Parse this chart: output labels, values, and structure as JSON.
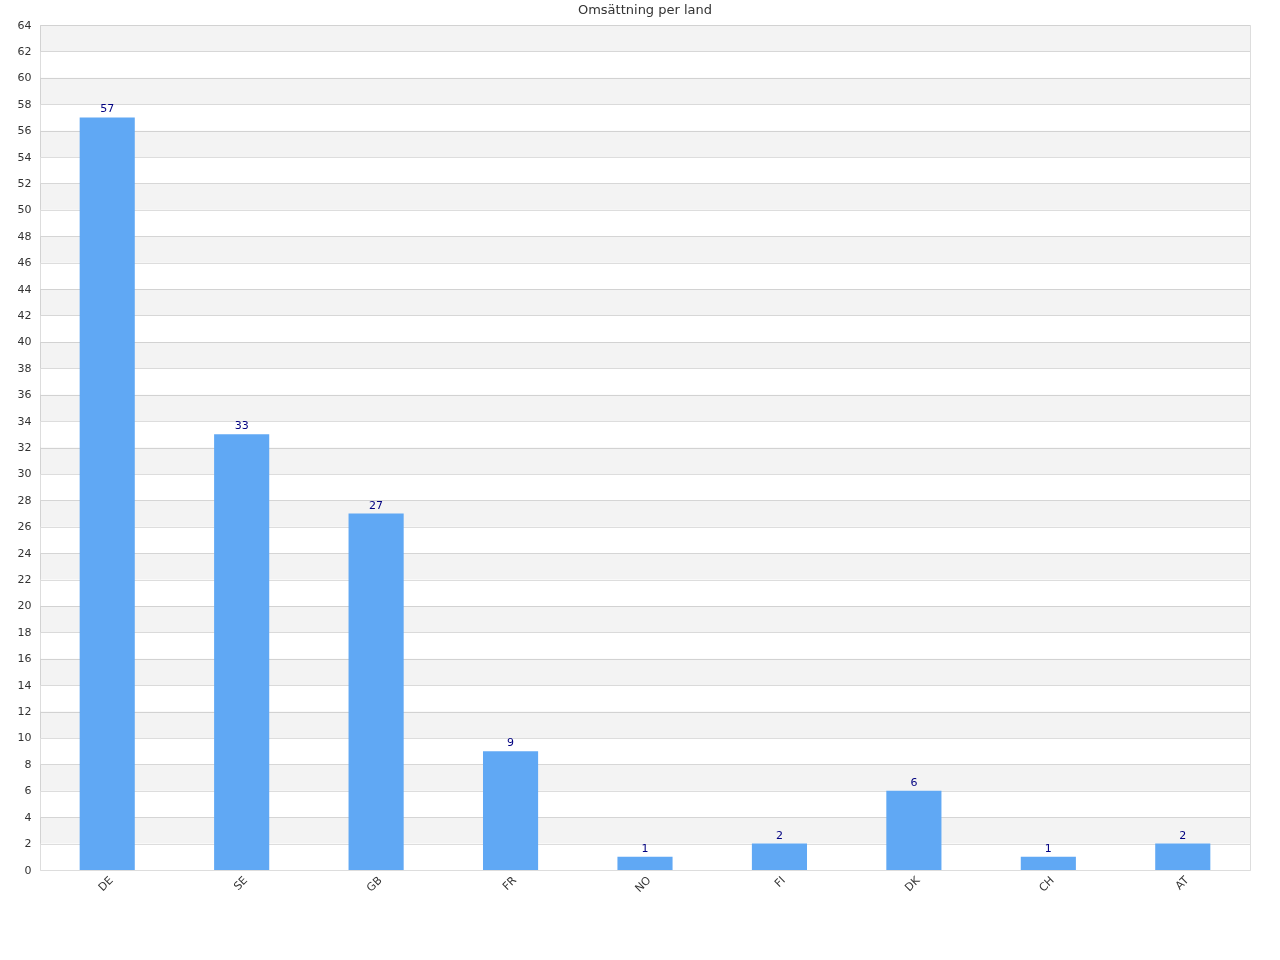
{
  "chart_data": {
    "type": "bar",
    "title": "Omsättning per land",
    "categories": [
      "DE",
      "SE",
      "GB",
      "FR",
      "NO",
      "FI",
      "DK",
      "CH",
      "AT"
    ],
    "values": [
      57,
      33,
      27,
      9,
      1,
      2,
      6,
      1,
      2
    ],
    "color": "#60a8f4",
    "ylim": [
      0,
      64
    ],
    "yticks": [
      0,
      2,
      4,
      6,
      8,
      10,
      12,
      14,
      16,
      18,
      20,
      22,
      24,
      26,
      28,
      30,
      32,
      34,
      36,
      38,
      40,
      42,
      44,
      46,
      48,
      50,
      52,
      54,
      56,
      58,
      60,
      62,
      64
    ],
    "grid": "y",
    "data_labels": true
  }
}
